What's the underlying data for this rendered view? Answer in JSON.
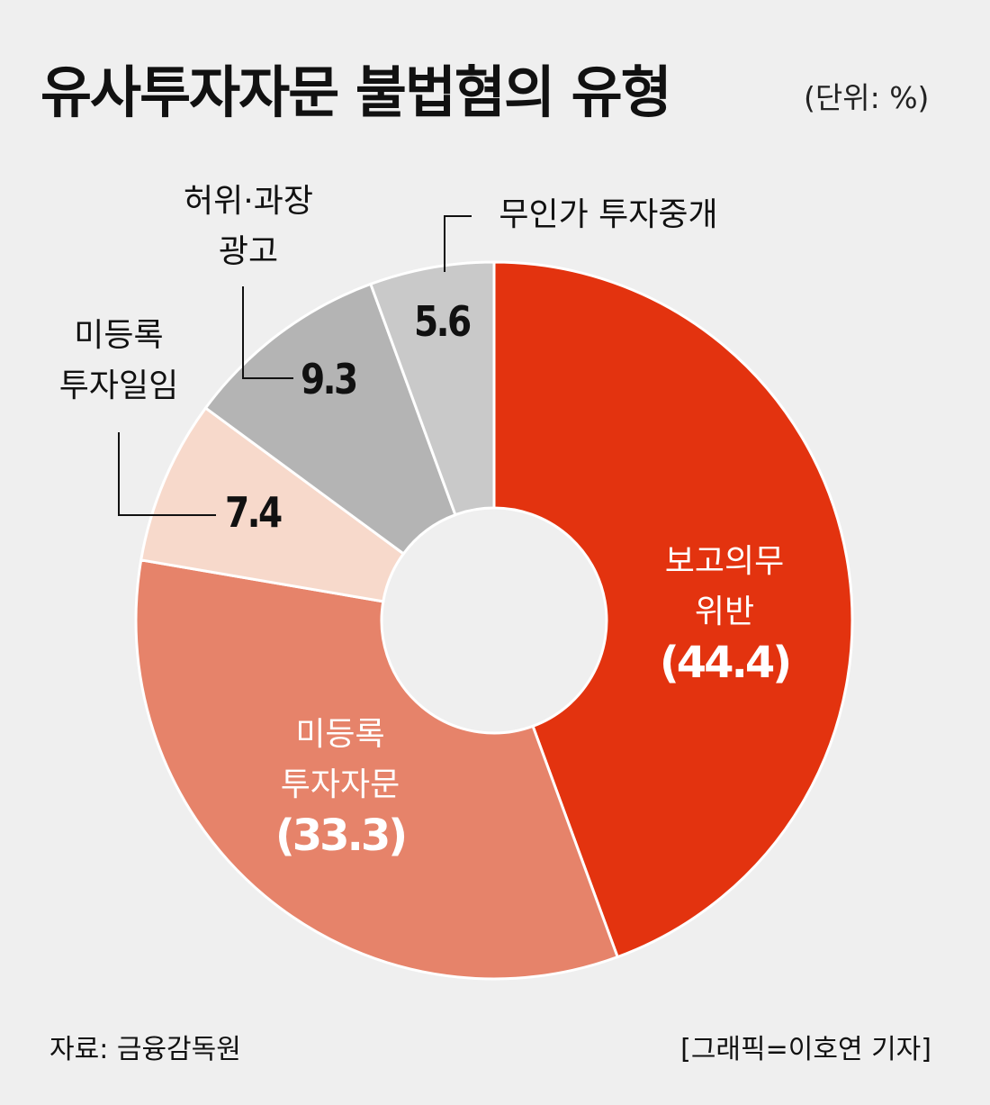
{
  "title": "유사투자자문 불법혐의 유형",
  "unit": "(단위: %)",
  "source": "자료: 금융감독원",
  "credit": "[그래픽=이호연 기자]",
  "chart_data": {
    "type": "pie",
    "donut": true,
    "title": "유사투자자문 불법혐의 유형",
    "unit": "%",
    "slices": [
      {
        "label": "보고의무 위반",
        "line1": "보고의무",
        "line2": "위반",
        "value": 44.4,
        "display": "(44.4)",
        "color": "#e3330f"
      },
      {
        "label": "미등록 투자자문",
        "line1": "미등록",
        "line2": "투자자문",
        "value": 33.3,
        "display": "(33.3)",
        "color": "#e6836a"
      },
      {
        "label": "미등록 투자일임",
        "line1": "미등록",
        "line2": "투자일임",
        "value": 7.4,
        "display": "7.4",
        "color": "#f7d9cb"
      },
      {
        "label": "허위·과장 광고",
        "line1": "허위·과장",
        "line2": "광고",
        "value": 9.3,
        "display": "9.3",
        "color": "#b4b4b4"
      },
      {
        "label": "무인가 투자중개",
        "line1": "무인가 투자중개",
        "line2": "",
        "value": 5.6,
        "display": "5.6",
        "color": "#c9c9c9"
      }
    ]
  }
}
